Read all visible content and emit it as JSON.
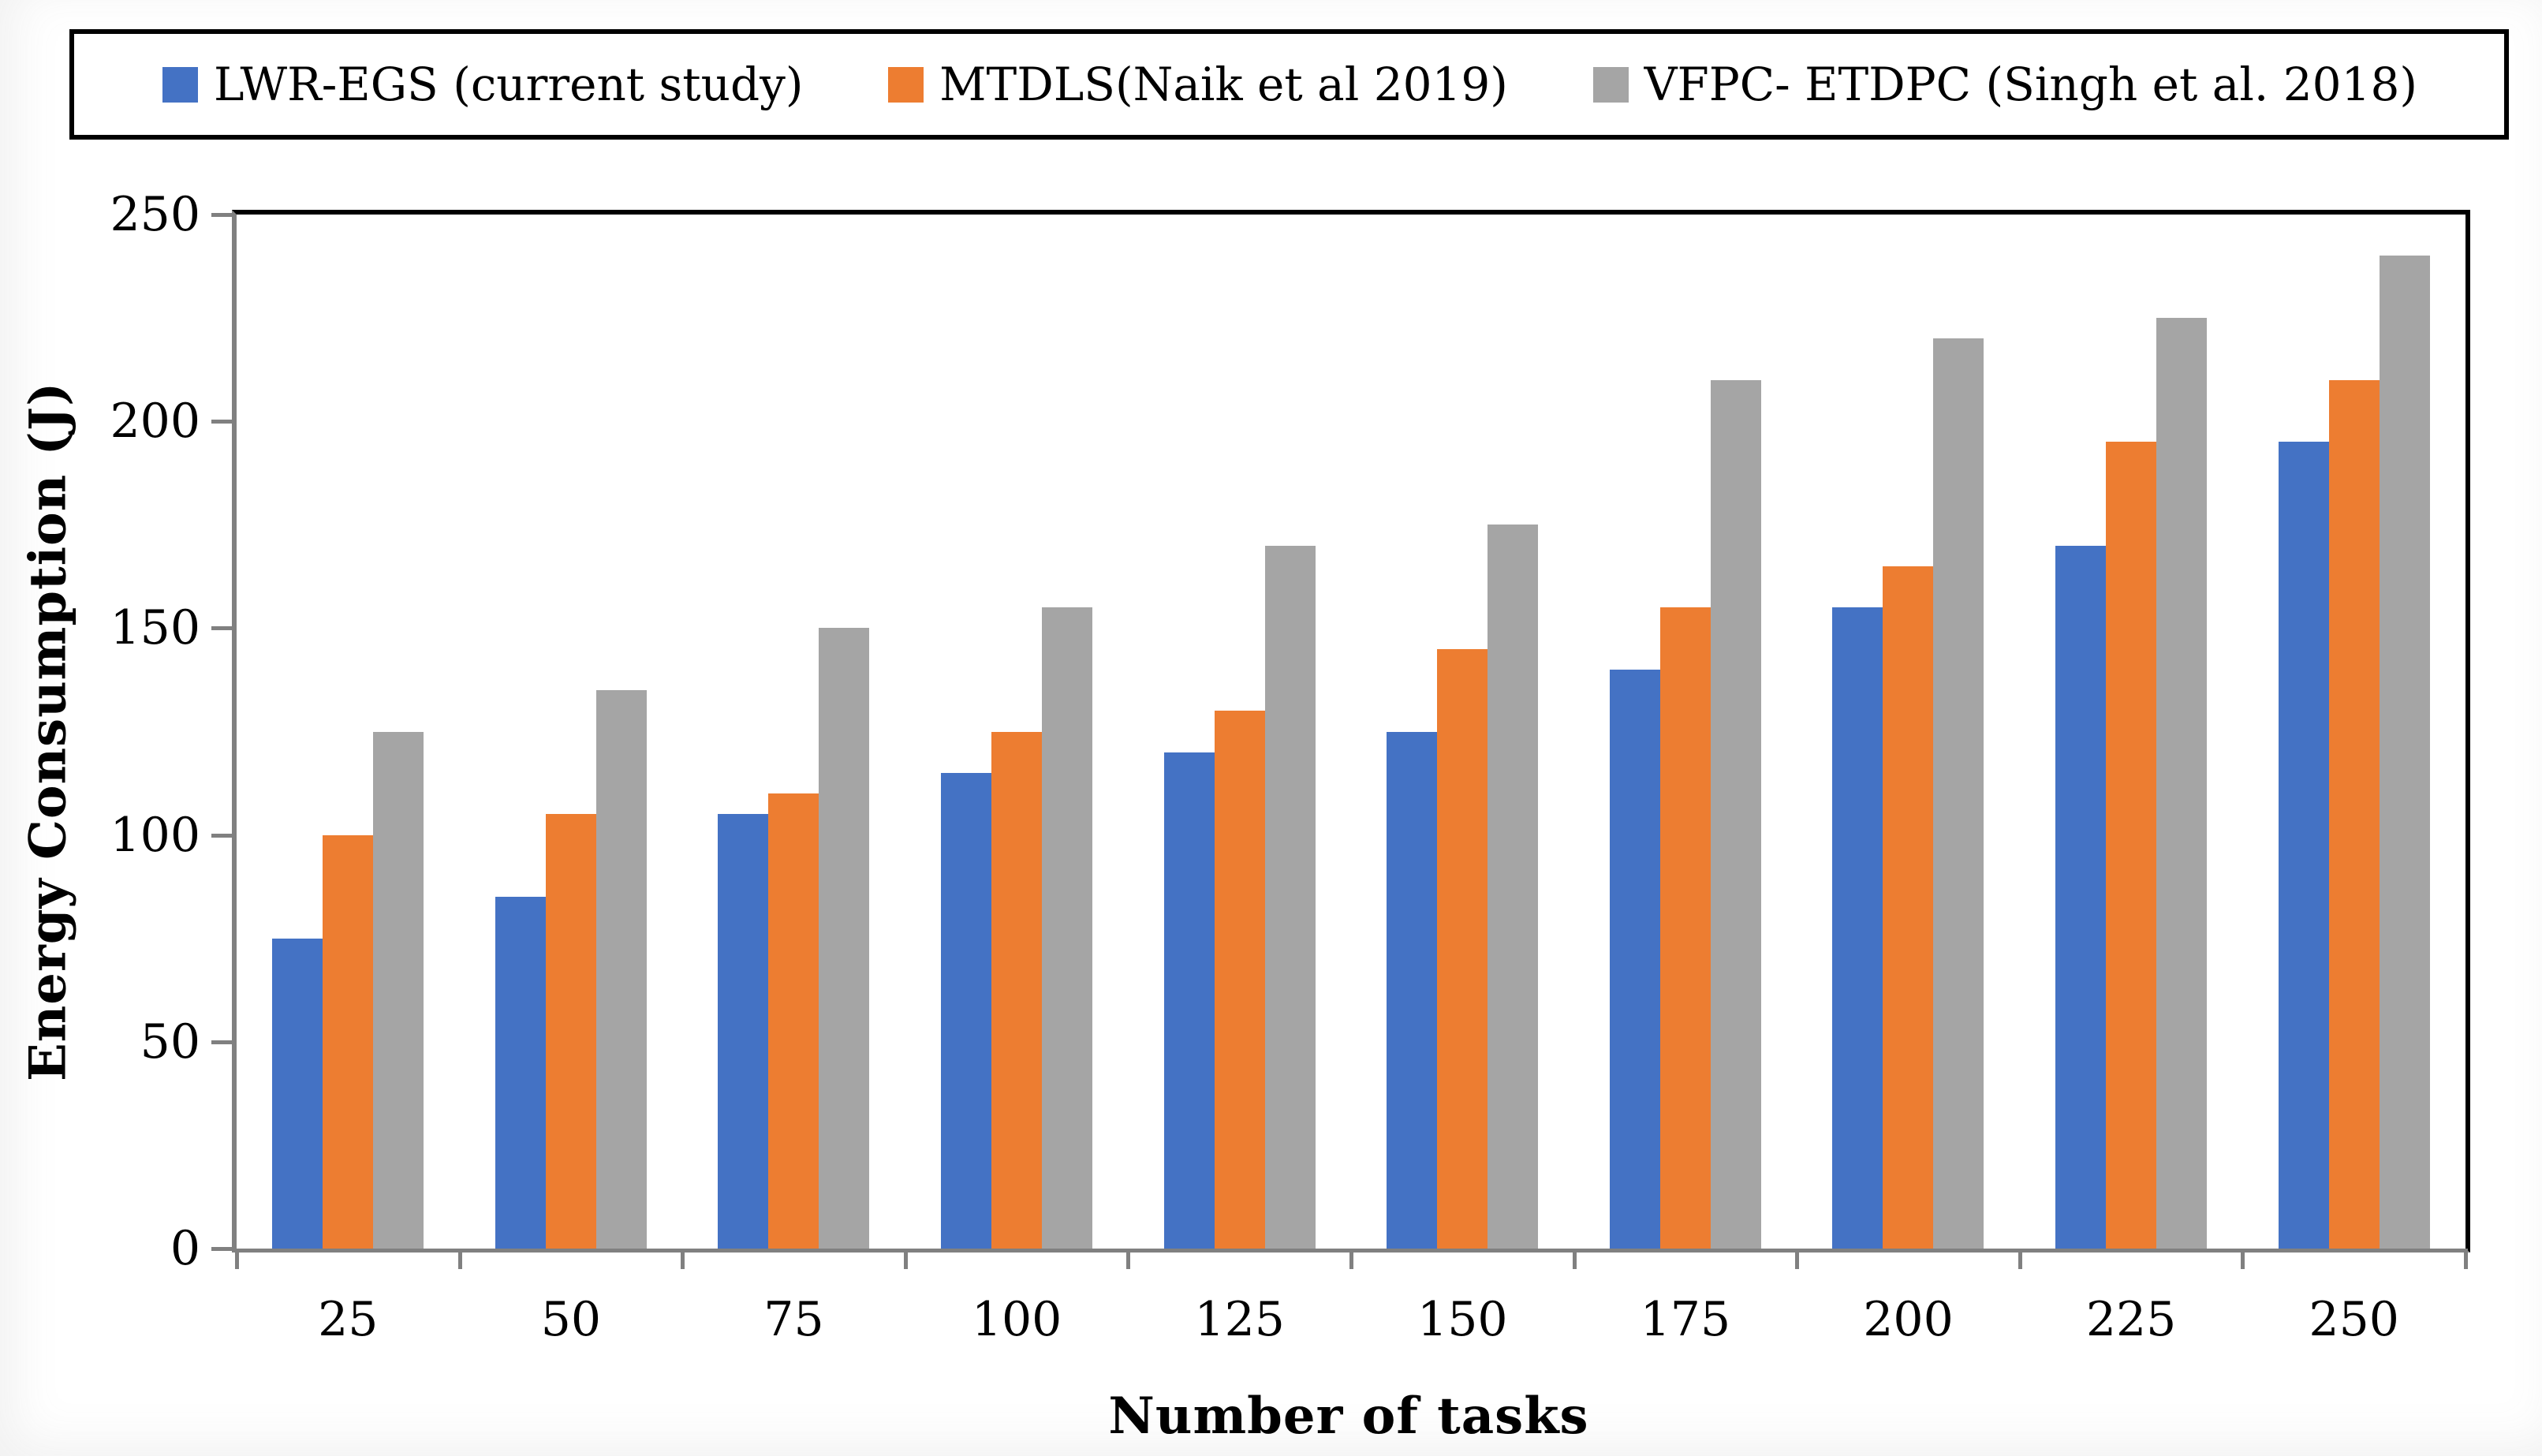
{
  "legend": {
    "items": [
      {
        "label": "LWR-EGS (current study)",
        "color": "#4472C4"
      },
      {
        "label": "MTDLS(Naik et al 2019)",
        "color": "#ED7D31"
      },
      {
        "label": "VFPC- ETDPC (Singh et al. 2018)",
        "color": "#A5A5A5"
      }
    ]
  },
  "y_axis": {
    "title": "Energy Consumption (J)",
    "min": 0,
    "max": 250,
    "tick_step": 50,
    "tick_labels": [
      "250",
      "200",
      "150",
      "100",
      "50",
      "0"
    ]
  },
  "x_axis": {
    "title": "Number of tasks",
    "categories": [
      "25",
      "50",
      "75",
      "100",
      "125",
      "150",
      "175",
      "200",
      "225",
      "250"
    ]
  },
  "chart_data": {
    "type": "bar",
    "title": "",
    "xlabel": "Number of tasks",
    "ylabel": "Energy Consumption (J)",
    "ylim": [
      0,
      250
    ],
    "grid": false,
    "legend_position": "top",
    "categories": [
      25,
      50,
      75,
      100,
      125,
      150,
      175,
      200,
      225,
      250
    ],
    "series": [
      {
        "name": "LWR-EGS (current study)",
        "color": "#4472C4",
        "values": [
          75,
          85,
          105,
          115,
          120,
          125,
          140,
          155,
          170,
          195
        ]
      },
      {
        "name": "MTDLS(Naik et al 2019)",
        "color": "#ED7D31",
        "values": [
          100,
          105,
          110,
          125,
          130,
          145,
          155,
          165,
          195,
          210
        ]
      },
      {
        "name": "VFPC- ETDPC (Singh et al. 2018)",
        "color": "#A5A5A5",
        "values": [
          125,
          135,
          150,
          155,
          170,
          175,
          210,
          220,
          225,
          240
        ]
      }
    ]
  },
  "style": {
    "plot_border_color": "#000000",
    "axis_line_color": "#808080",
    "tick_color": "#808080",
    "background": "#ffffff"
  }
}
